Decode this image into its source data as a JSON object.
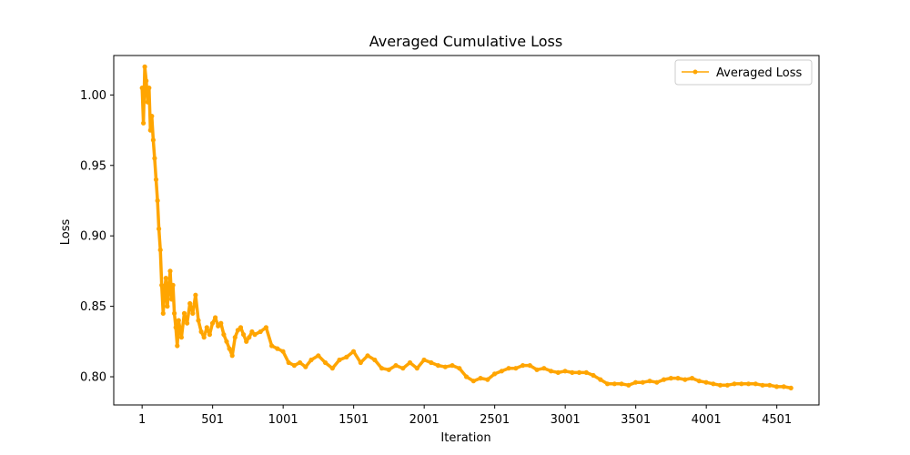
{
  "chart_data": {
    "type": "line",
    "title": "Averaged Cumulative Loss",
    "xlabel": "Iteration",
    "ylabel": "Loss",
    "xlim": [
      -200,
      4800
    ],
    "ylim": [
      0.78,
      1.028
    ],
    "x_ticks": [
      1,
      501,
      1001,
      1501,
      2001,
      2501,
      3001,
      3501,
      4001,
      4501
    ],
    "y_ticks": [
      0.8,
      0.85,
      0.9,
      0.95,
      1.0
    ],
    "y_tick_labels": [
      "0.80",
      "0.85",
      "0.90",
      "0.95",
      "1.00"
    ],
    "grid": false,
    "legend": {
      "position": "top-right",
      "entries": [
        "Averaged Loss"
      ]
    },
    "colors": {
      "series": "#ffa500",
      "axes": "#000000"
    },
    "marker": "circle",
    "series": [
      {
        "name": "Averaged Loss",
        "x": [
          1,
          10,
          20,
          30,
          40,
          50,
          60,
          70,
          80,
          90,
          100,
          110,
          120,
          130,
          140,
          150,
          160,
          170,
          180,
          190,
          200,
          210,
          220,
          230,
          240,
          250,
          260,
          280,
          300,
          320,
          340,
          360,
          380,
          400,
          420,
          440,
          460,
          480,
          500,
          520,
          540,
          560,
          580,
          600,
          620,
          640,
          660,
          680,
          700,
          720,
          740,
          760,
          780,
          800,
          840,
          880,
          920,
          960,
          1000,
          1040,
          1080,
          1120,
          1160,
          1200,
          1250,
          1300,
          1350,
          1400,
          1450,
          1500,
          1550,
          1600,
          1650,
          1700,
          1750,
          1800,
          1850,
          1900,
          1950,
          2000,
          2050,
          2100,
          2150,
          2200,
          2250,
          2300,
          2350,
          2400,
          2450,
          2500,
          2550,
          2600,
          2650,
          2700,
          2750,
          2800,
          2850,
          2900,
          2950,
          3000,
          3050,
          3100,
          3150,
          3200,
          3250,
          3300,
          3350,
          3400,
          3450,
          3500,
          3550,
          3600,
          3650,
          3700,
          3750,
          3800,
          3850,
          3900,
          3950,
          4000,
          4050,
          4100,
          4150,
          4200,
          4250,
          4300,
          4350,
          4400,
          4450,
          4500,
          4550,
          4601
        ],
        "y": [
          1.005,
          0.98,
          1.02,
          1.01,
          0.995,
          1.005,
          0.975,
          0.985,
          0.968,
          0.955,
          0.94,
          0.925,
          0.905,
          0.89,
          0.865,
          0.845,
          0.86,
          0.87,
          0.85,
          0.862,
          0.875,
          0.855,
          0.865,
          0.845,
          0.835,
          0.822,
          0.84,
          0.828,
          0.845,
          0.838,
          0.852,
          0.845,
          0.858,
          0.84,
          0.832,
          0.828,
          0.835,
          0.83,
          0.838,
          0.842,
          0.836,
          0.838,
          0.83,
          0.825,
          0.82,
          0.815,
          0.828,
          0.833,
          0.835,
          0.83,
          0.825,
          0.828,
          0.832,
          0.83,
          0.832,
          0.835,
          0.822,
          0.82,
          0.818,
          0.81,
          0.808,
          0.81,
          0.807,
          0.812,
          0.815,
          0.81,
          0.806,
          0.812,
          0.814,
          0.818,
          0.81,
          0.815,
          0.812,
          0.806,
          0.805,
          0.808,
          0.806,
          0.81,
          0.806,
          0.812,
          0.81,
          0.808,
          0.807,
          0.808,
          0.806,
          0.8,
          0.797,
          0.799,
          0.798,
          0.802,
          0.804,
          0.806,
          0.806,
          0.808,
          0.808,
          0.805,
          0.806,
          0.804,
          0.803,
          0.804,
          0.803,
          0.803,
          0.803,
          0.801,
          0.798,
          0.795,
          0.795,
          0.795,
          0.794,
          0.796,
          0.796,
          0.797,
          0.796,
          0.798,
          0.799,
          0.799,
          0.798,
          0.799,
          0.797,
          0.796,
          0.795,
          0.794,
          0.794,
          0.795,
          0.795,
          0.795,
          0.795,
          0.794,
          0.794,
          0.793,
          0.793,
          0.792
        ]
      }
    ]
  }
}
